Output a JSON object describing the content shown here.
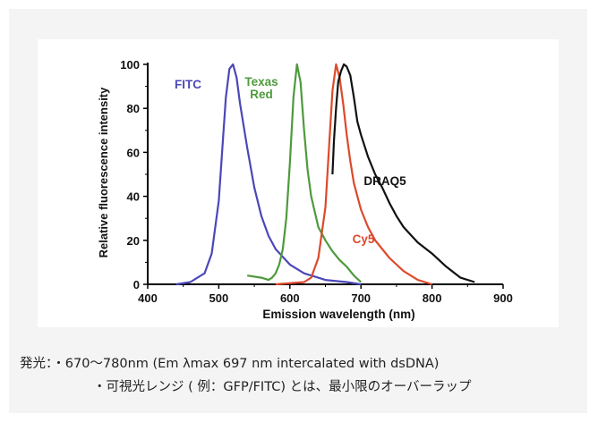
{
  "chart_data": {
    "type": "line",
    "xlabel": "Emission wavelength (nm)",
    "ylabel": "Relative fluorescence intensity",
    "xlim": [
      400,
      900
    ],
    "ylim": [
      0,
      100
    ],
    "xticks": [
      400,
      500,
      600,
      700,
      800,
      900
    ],
    "yticks": [
      0,
      20,
      40,
      60,
      80,
      100
    ],
    "grid": false,
    "series": [
      {
        "name": "FITC",
        "color": "#4a48b8",
        "x": [
          440,
          460,
          480,
          490,
          500,
          505,
          510,
          515,
          520,
          525,
          530,
          540,
          550,
          560,
          570,
          580,
          600,
          620,
          650,
          680,
          700
        ],
        "y": [
          0,
          1,
          5,
          14,
          38,
          62,
          85,
          98,
          100,
          94,
          82,
          62,
          44,
          31,
          22,
          16,
          9,
          5,
          2,
          1,
          0
        ]
      },
      {
        "name": "Texas Red",
        "color": "#4e9a3c",
        "x": [
          540,
          560,
          570,
          575,
          580,
          585,
          590,
          595,
          600,
          605,
          610,
          615,
          620,
          625,
          630,
          640,
          650,
          660,
          670,
          680,
          690,
          700
        ],
        "y": [
          4,
          3,
          2,
          3,
          5,
          9,
          16,
          30,
          55,
          85,
          100,
          92,
          70,
          52,
          40,
          26,
          20,
          15,
          11,
          8,
          4,
          1
        ]
      },
      {
        "name": "Cy5",
        "color": "#dc4a2c",
        "x": [
          580,
          620,
          630,
          640,
          650,
          655,
          660,
          665,
          670,
          675,
          680,
          685,
          690,
          700,
          710,
          720,
          740,
          760,
          780,
          800
        ],
        "y": [
          0,
          1,
          3,
          12,
          35,
          62,
          88,
          100,
          94,
          82,
          68,
          56,
          46,
          34,
          26,
          20,
          12,
          6,
          2,
          0
        ]
      },
      {
        "name": "DRAQ5",
        "color": "#111111",
        "x": [
          660,
          662,
          665,
          668,
          672,
          676,
          680,
          685,
          690,
          695,
          700,
          710,
          720,
          730,
          740,
          750,
          760,
          780,
          800,
          820,
          840,
          860
        ],
        "y": [
          50,
          65,
          80,
          92,
          97,
          100,
          99,
          95,
          85,
          74,
          68,
          58,
          50,
          44,
          37,
          31,
          26,
          19,
          14,
          8,
          3,
          1
        ]
      }
    ]
  },
  "caption": {
    "line1": "発光：・670〜780nm (Em λmax 697 nm intercalated with dsDNA)",
    "line2": "・可視光レンジ ( 例：GFP/FITC) とは、最小限のオーバーラップ"
  }
}
